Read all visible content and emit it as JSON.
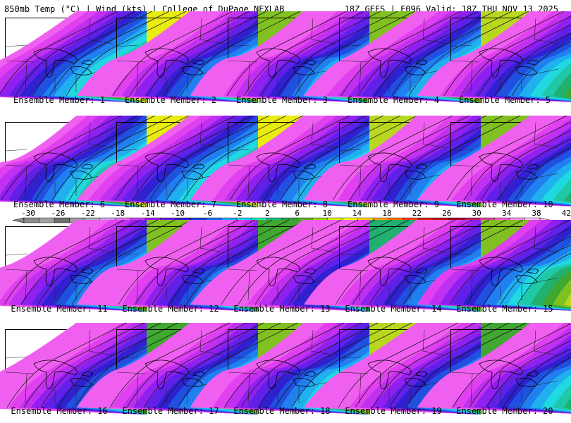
{
  "header": {
    "title_left": "850mb Temp (°C) | Wind (kts) | College of DuPage NEXLAB",
    "title_right": "18Z GEFS | F096 Valid: 18Z THU NOV 13 2025"
  },
  "members": [
    "Ensemble Member: 1",
    "Ensemble Member: 2",
    "Ensemble Member: 3",
    "Ensemble Member: 4",
    "Ensemble Member: 5",
    "Ensemble Member: 6",
    "Ensemble Member: 7",
    "Ensemble Member: 8",
    "Ensemble Member: 9",
    "Ensemble Member: 10",
    "Ensemble Member: 11",
    "Ensemble Member: 12",
    "Ensemble Member: 13",
    "Ensemble Member: 14",
    "Ensemble Member: 15",
    "Ensemble Member: 16",
    "Ensemble Member: 17",
    "Ensemble Member: 18",
    "Ensemble Member: 19",
    "Ensemble Member: 20"
  ],
  "colorbar": {
    "ticks": [
      "-30",
      "-26",
      "-22",
      "-18",
      "-14",
      "-10",
      "-6",
      "-2",
      "2",
      "6",
      "10",
      "14",
      "18",
      "22",
      "26",
      "30",
      "34",
      "38",
      "42"
    ],
    "colors": [
      "#8a8a8a",
      "#a0a0a0",
      "#6e6e6e",
      "#9a9a9a",
      "#b0b0b0",
      "#c8a0e8",
      "#e070f0",
      "#d040f0",
      "#a020f0",
      "#6a20e0",
      "#3a20d0",
      "#2040e0",
      "#2070f0",
      "#20a8f0",
      "#20d0f0",
      "#20e8c0",
      "#20c080",
      "#30a040",
      "#60b020",
      "#a0d010",
      "#e0f000",
      "#ffff00",
      "#ffd000",
      "#ffa000",
      "#ff7000",
      "#ff4020",
      "#e02020",
      "#c01020",
      "#a00020",
      "#c02060",
      "#e040a0",
      "#ff60d0",
      "#ff90f0",
      "#ffc0ff"
    ]
  }
}
